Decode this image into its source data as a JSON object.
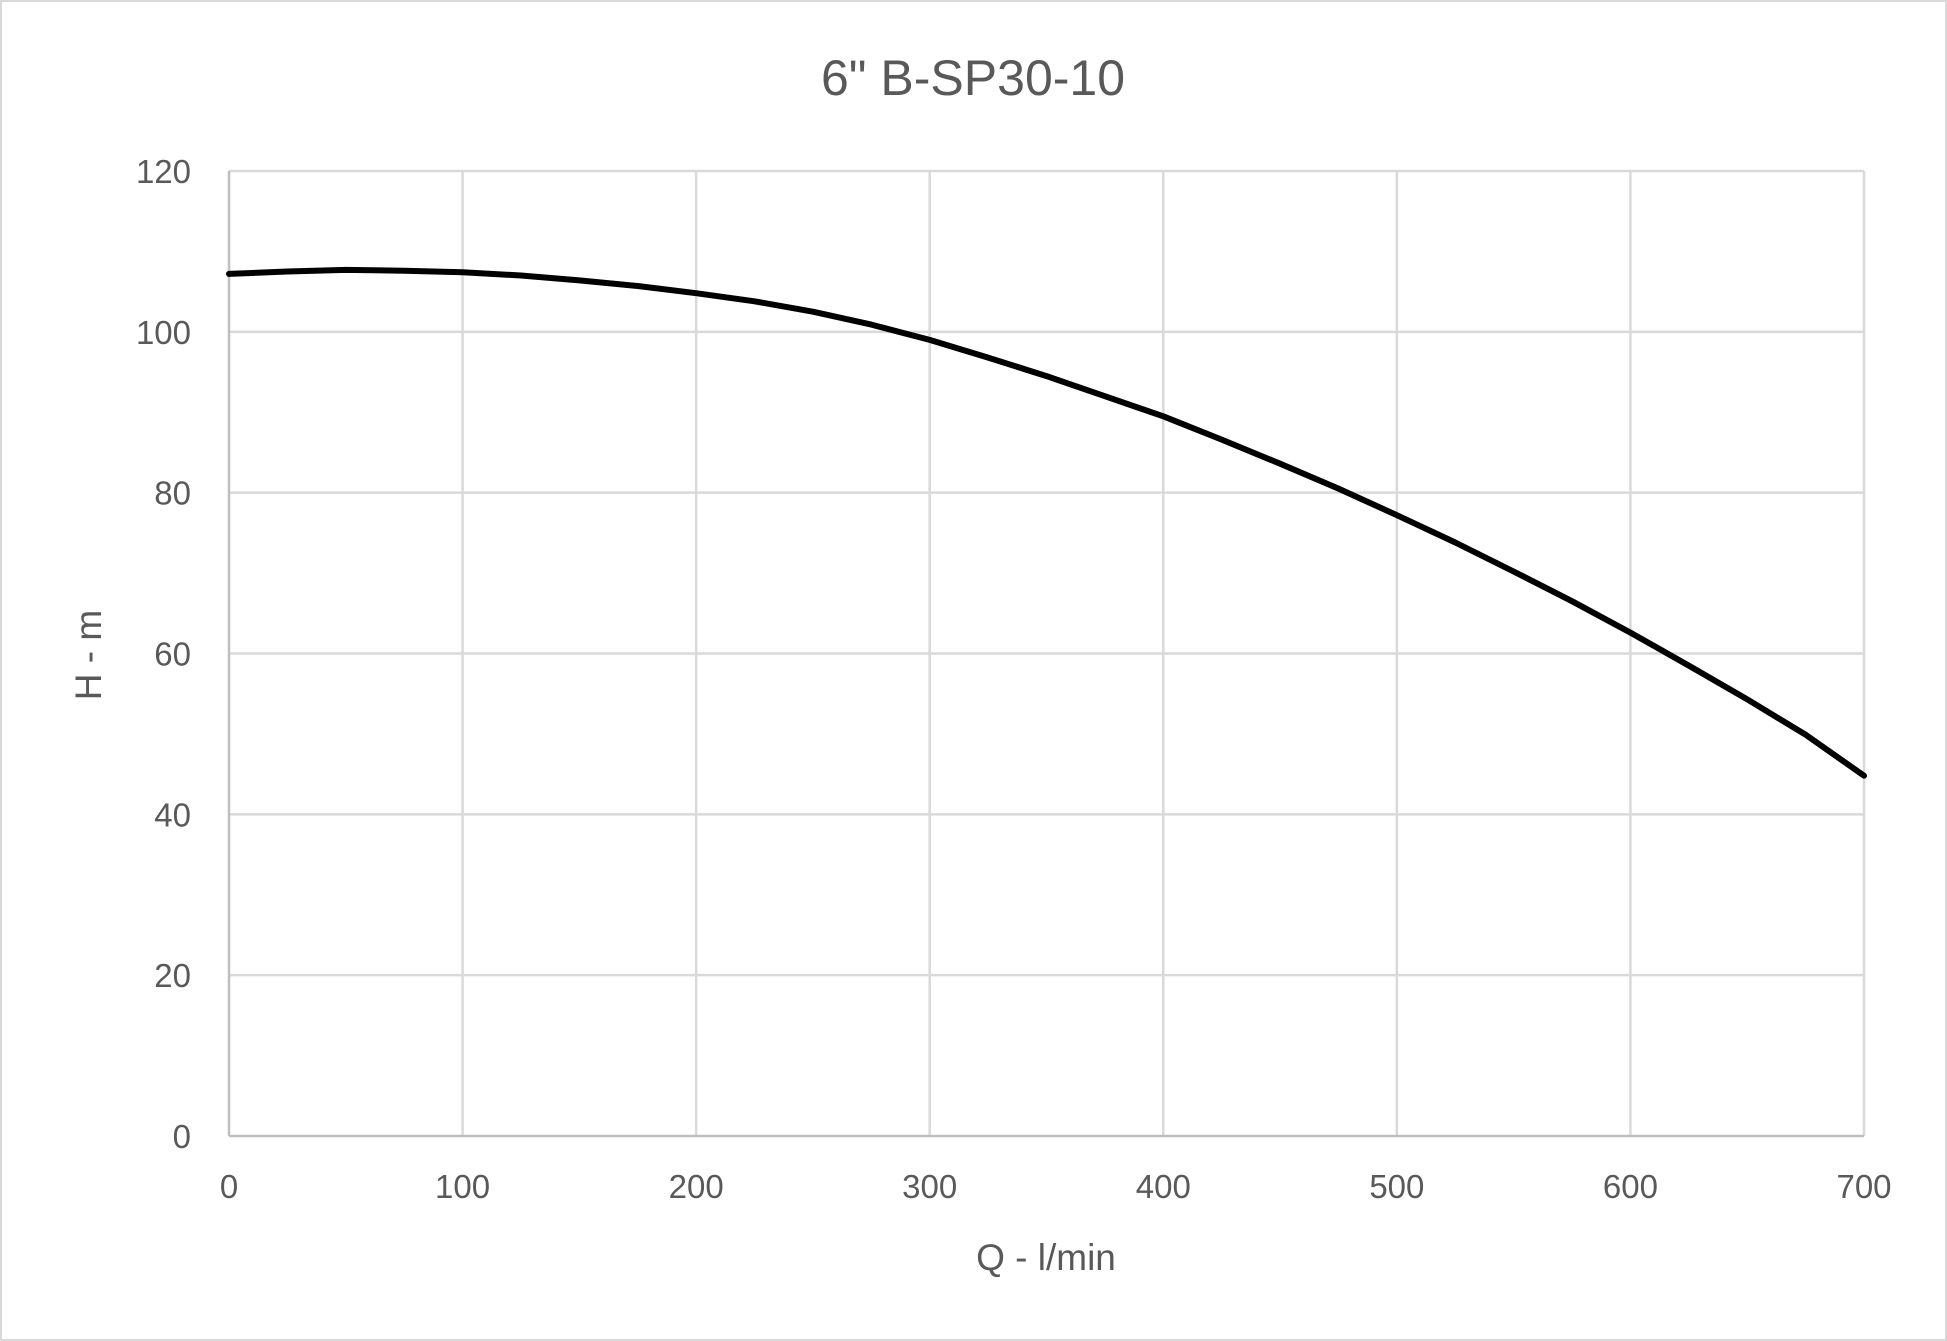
{
  "chart_data": {
    "type": "line",
    "title": "6\" B-SP30-10",
    "xlabel": "Q - l/min",
    "ylabel": "H - m",
    "xlim": [
      0,
      700
    ],
    "ylim": [
      0,
      120
    ],
    "x_ticks": [
      0,
      100,
      200,
      300,
      400,
      500,
      600,
      700
    ],
    "y_ticks": [
      0,
      20,
      40,
      60,
      80,
      100,
      120
    ],
    "grid": true,
    "legend": "none",
    "series": [
      {
        "color": "#000000",
        "x": [
          0,
          25,
          50,
          75,
          100,
          125,
          150,
          175,
          200,
          225,
          250,
          275,
          300,
          325,
          350,
          375,
          400,
          425,
          450,
          475,
          500,
          525,
          550,
          575,
          600,
          625,
          650,
          675,
          700
        ],
        "y": [
          107.2,
          107.5,
          107.7,
          107.6,
          107.4,
          107.0,
          106.4,
          105.7,
          104.8,
          103.8,
          102.5,
          100.9,
          99.0,
          96.8,
          94.5,
          92.0,
          89.5,
          86.6,
          83.6,
          80.5,
          77.2,
          73.8,
          70.2,
          66.5,
          62.6,
          58.5,
          54.3,
          49.9,
          44.8
        ]
      }
    ]
  }
}
